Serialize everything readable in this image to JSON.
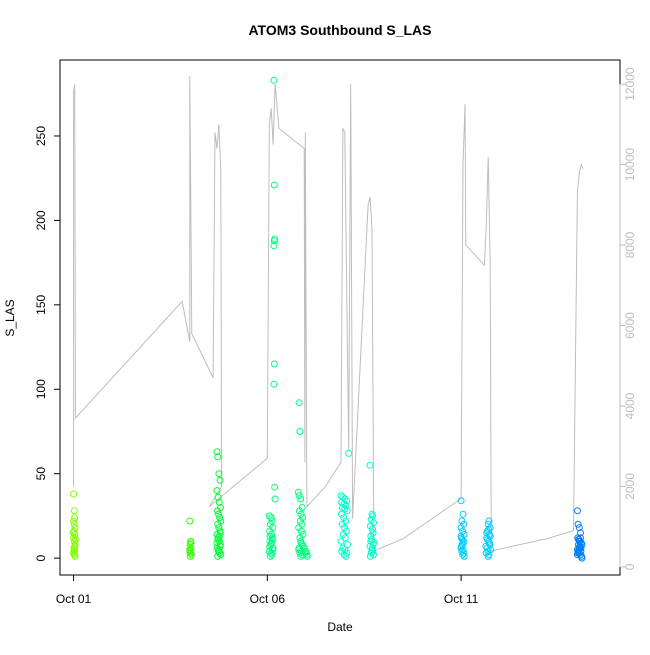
{
  "chart_data": {
    "type": "scatter",
    "title": "ATOM3 Southbound S_LAS",
    "xlabel": "Date",
    "ylabel": "S_LAS",
    "x_ticks": [
      "Oct 01",
      "Oct 06",
      "Oct 11"
    ],
    "x_tick_days": [
      1,
      6,
      11
    ],
    "xlim": [
      0.65,
      15.1
    ],
    "ylim": [
      -10,
      295
    ],
    "y_ticks": [
      0,
      50,
      100,
      150,
      200,
      250
    ],
    "y2_ticks": [
      0,
      2000,
      4000,
      6000,
      8000,
      10000,
      12000
    ],
    "y2lim": [
      -200,
      12600
    ],
    "grid": false,
    "legend": "none",
    "colors": {
      "secondary_line": "#bdbdbd",
      "point_colors": [
        "#7fff00",
        "#33ff00",
        "#00ff33",
        "#00ff7f",
        "#00ffcc",
        "#00ffff",
        "#00ccff",
        "#007fff"
      ]
    },
    "series": [
      {
        "points": [
          [
            1.0,
            38
          ],
          [
            1.02,
            28
          ],
          [
            1.03,
            24
          ],
          [
            1.0,
            22
          ],
          [
            1.02,
            20
          ],
          [
            1.04,
            18
          ],
          [
            1.01,
            16
          ],
          [
            1.03,
            14
          ],
          [
            1.0,
            12
          ],
          [
            1.02,
            10
          ],
          [
            1.04,
            8
          ],
          [
            1.01,
            6
          ],
          [
            1.03,
            4
          ],
          [
            1.0,
            3
          ],
          [
            1.02,
            2
          ],
          [
            1.04,
            1
          ],
          [
            1.01,
            5
          ],
          [
            1.03,
            7
          ],
          [
            1.05,
            11
          ],
          [
            0.99,
            15
          ],
          [
            4.0,
            22
          ],
          [
            4.02,
            10
          ],
          [
            4.01,
            8
          ],
          [
            4.03,
            6
          ],
          [
            4.0,
            4
          ],
          [
            4.02,
            3
          ],
          [
            4.04,
            2
          ],
          [
            4.01,
            1
          ],
          [
            4.03,
            9
          ],
          [
            4.0,
            5
          ],
          [
            4.7,
            63
          ],
          [
            4.72,
            60
          ],
          [
            4.75,
            50
          ],
          [
            4.78,
            46
          ],
          [
            4.7,
            40
          ],
          [
            4.73,
            36
          ],
          [
            4.76,
            33
          ],
          [
            4.79,
            30
          ],
          [
            4.71,
            28
          ],
          [
            4.74,
            26
          ],
          [
            4.77,
            24
          ],
          [
            4.8,
            22
          ],
          [
            4.72,
            20
          ],
          [
            4.75,
            18
          ],
          [
            4.78,
            16
          ],
          [
            4.7,
            14
          ],
          [
            4.73,
            12
          ],
          [
            4.76,
            10
          ],
          [
            4.79,
            8
          ],
          [
            4.71,
            6
          ],
          [
            4.74,
            4
          ],
          [
            4.77,
            3
          ],
          [
            4.8,
            2
          ],
          [
            4.72,
            1
          ],
          [
            4.75,
            5
          ],
          [
            4.78,
            7
          ],
          [
            4.7,
            9
          ],
          [
            4.73,
            11
          ],
          [
            4.76,
            13
          ],
          [
            4.79,
            15
          ],
          [
            6.05,
            25
          ],
          [
            6.1,
            24
          ],
          [
            6.12,
            22
          ],
          [
            6.08,
            20
          ],
          [
            6.14,
            18
          ],
          [
            6.06,
            16
          ],
          [
            6.11,
            14
          ],
          [
            6.13,
            12
          ],
          [
            6.07,
            10
          ],
          [
            6.09,
            8
          ],
          [
            6.15,
            6
          ],
          [
            6.05,
            4
          ],
          [
            6.1,
            3
          ],
          [
            6.12,
            2
          ],
          [
            6.08,
            1
          ],
          [
            6.14,
            5
          ],
          [
            6.06,
            7
          ],
          [
            6.11,
            9
          ],
          [
            6.13,
            11
          ],
          [
            6.07,
            13
          ],
          [
            6.17,
            283
          ],
          [
            6.18,
            221
          ],
          [
            6.19,
            189
          ],
          [
            6.18,
            188
          ],
          [
            6.17,
            185
          ],
          [
            6.18,
            115
          ],
          [
            6.17,
            103
          ],
          [
            6.19,
            42
          ],
          [
            6.2,
            35
          ],
          [
            6.82,
            92
          ],
          [
            6.84,
            75
          ],
          [
            6.8,
            39
          ],
          [
            6.82,
            37
          ],
          [
            6.86,
            35
          ],
          [
            6.9,
            30
          ],
          [
            6.83,
            28
          ],
          [
            6.87,
            26
          ],
          [
            6.91,
            24
          ],
          [
            6.85,
            22
          ],
          [
            6.89,
            20
          ],
          [
            6.81,
            18
          ],
          [
            6.88,
            16
          ],
          [
            6.92,
            14
          ],
          [
            6.84,
            12
          ],
          [
            6.86,
            10
          ],
          [
            6.9,
            8
          ],
          [
            6.82,
            6
          ],
          [
            6.88,
            4
          ],
          [
            6.84,
            3
          ],
          [
            6.9,
            2
          ],
          [
            6.86,
            1
          ],
          [
            6.81,
            5
          ],
          [
            6.92,
            7
          ],
          [
            6.87,
            9
          ],
          [
            7.0,
            4
          ],
          [
            7.02,
            2
          ],
          [
            6.98,
            3
          ],
          [
            7.03,
            1
          ],
          [
            6.96,
            6
          ]
        ]
      },
      {
        "points": [
          [
            7.9,
            37
          ],
          [
            7.95,
            36
          ],
          [
            8.0,
            35
          ],
          [
            8.05,
            34
          ],
          [
            7.92,
            33
          ],
          [
            7.98,
            32
          ],
          [
            8.03,
            31
          ],
          [
            7.94,
            30
          ],
          [
            8.0,
            29
          ],
          [
            8.06,
            28
          ],
          [
            7.91,
            26
          ],
          [
            7.97,
            24
          ],
          [
            8.02,
            22
          ],
          [
            7.93,
            20
          ],
          [
            7.99,
            18
          ],
          [
            8.04,
            16
          ],
          [
            7.96,
            14
          ],
          [
            8.01,
            12
          ],
          [
            7.9,
            10
          ],
          [
            8.07,
            8
          ],
          [
            7.95,
            6
          ],
          [
            8.0,
            5
          ],
          [
            7.92,
            4
          ],
          [
            8.05,
            3
          ],
          [
            7.98,
            2
          ],
          [
            8.03,
            1
          ],
          [
            8.1,
            62
          ],
          [
            8.65,
            55
          ],
          [
            8.7,
            26
          ],
          [
            8.72,
            25
          ],
          [
            8.68,
            23
          ],
          [
            8.74,
            21
          ],
          [
            8.66,
            19
          ],
          [
            8.71,
            17
          ],
          [
            8.73,
            15
          ],
          [
            8.67,
            13
          ],
          [
            8.69,
            11
          ],
          [
            8.75,
            9
          ],
          [
            8.65,
            7
          ],
          [
            8.7,
            5
          ],
          [
            8.72,
            4
          ],
          [
            8.68,
            3
          ],
          [
            8.74,
            2
          ],
          [
            8.66,
            1
          ],
          [
            8.71,
            6
          ],
          [
            8.73,
            8
          ],
          [
            8.67,
            10
          ]
        ]
      },
      {
        "points": [
          [
            11.0,
            34
          ],
          [
            11.05,
            26
          ],
          [
            11.02,
            22
          ],
          [
            11.07,
            20
          ],
          [
            11.0,
            18
          ],
          [
            11.04,
            16
          ],
          [
            11.08,
            14
          ],
          [
            11.01,
            12
          ],
          [
            11.06,
            10
          ],
          [
            11.03,
            8
          ],
          [
            11.0,
            6
          ],
          [
            11.05,
            5
          ],
          [
            11.02,
            4
          ],
          [
            11.07,
            3
          ],
          [
            11.04,
            2
          ],
          [
            11.08,
            1
          ],
          [
            11.01,
            7
          ],
          [
            11.06,
            9
          ],
          [
            11.03,
            11
          ],
          [
            11.0,
            13
          ],
          [
            11.72,
            22
          ],
          [
            11.7,
            20
          ],
          [
            11.75,
            18
          ],
          [
            11.68,
            16
          ],
          [
            11.73,
            14
          ],
          [
            11.66,
            12
          ],
          [
            11.71,
            10
          ],
          [
            11.74,
            8
          ],
          [
            11.67,
            6
          ],
          [
            11.69,
            4
          ],
          [
            11.65,
            3
          ],
          [
            11.72,
            2
          ],
          [
            11.7,
            1
          ],
          [
            11.76,
            5
          ],
          [
            11.64,
            7
          ],
          [
            11.73,
            9
          ],
          [
            11.68,
            11
          ],
          [
            11.75,
            13
          ],
          [
            11.66,
            15
          ],
          [
            11.71,
            17
          ],
          [
            14.0,
            28
          ],
          [
            14.02,
            20
          ],
          [
            14.05,
            18
          ],
          [
            14.08,
            15
          ],
          [
            14.01,
            12
          ],
          [
            14.04,
            11
          ],
          [
            14.07,
            10
          ],
          [
            14.1,
            9
          ],
          [
            14.03,
            8
          ],
          [
            14.06,
            7
          ],
          [
            14.09,
            6
          ],
          [
            14.0,
            5
          ],
          [
            14.02,
            4
          ],
          [
            14.05,
            3
          ],
          [
            14.08,
            2
          ],
          [
            14.11,
            1
          ],
          [
            14.12,
            0
          ],
          [
            14.01,
            3
          ],
          [
            14.04,
            5
          ],
          [
            14.07,
            7
          ],
          [
            14.1,
            9
          ],
          [
            14.03,
            11
          ],
          [
            14.06,
            6
          ],
          [
            14.09,
            4
          ],
          [
            14.0,
            2
          ],
          [
            14.12,
            8
          ],
          [
            14.05,
            10
          ],
          [
            14.08,
            12
          ]
        ]
      }
    ],
    "secondary_series": {
      "axis": "right",
      "color": "#bdbdbd",
      "points": [
        [
          1.0,
          2000
        ],
        [
          1.0,
          11800
        ],
        [
          1.03,
          12000
        ],
        [
          1.05,
          3700
        ],
        [
          3.8,
          6600
        ],
        [
          4.0,
          5600
        ],
        [
          4.0,
          12200
        ],
        [
          4.05,
          5800
        ],
        [
          4.6,
          4700
        ],
        [
          4.65,
          10800
        ],
        [
          4.7,
          10400
        ],
        [
          4.75,
          11000
        ],
        [
          4.8,
          9800
        ],
        [
          4.82,
          2000
        ],
        [
          4.5,
          1500
        ],
        [
          6.0,
          2700
        ],
        [
          6.05,
          11000
        ],
        [
          6.1,
          11400
        ],
        [
          6.15,
          10500
        ],
        [
          6.2,
          12000
        ],
        [
          6.3,
          10900
        ],
        [
          6.95,
          10400
        ],
        [
          6.97,
          2600
        ],
        [
          6.98,
          10800
        ],
        [
          7.02,
          1500
        ],
        [
          7.5,
          2000
        ],
        [
          7.9,
          2600
        ],
        [
          7.95,
          10900
        ],
        [
          8.0,
          10800
        ],
        [
          8.1,
          2900
        ],
        [
          8.15,
          12000
        ],
        [
          8.2,
          1200
        ],
        [
          8.6,
          9000
        ],
        [
          8.65,
          9200
        ],
        [
          8.7,
          8400
        ],
        [
          8.75,
          400
        ],
        [
          9.5,
          700
        ],
        [
          11.0,
          1700
        ],
        [
          11.05,
          10000
        ],
        [
          11.1,
          11500
        ],
        [
          11.12,
          8000
        ],
        [
          11.6,
          7500
        ],
        [
          11.65,
          8500
        ],
        [
          11.7,
          10200
        ],
        [
          11.75,
          7500
        ],
        [
          11.78,
          400
        ],
        [
          13.2,
          700
        ],
        [
          13.9,
          900
        ],
        [
          14.0,
          9300
        ],
        [
          14.05,
          9800
        ],
        [
          14.1,
          10000
        ],
        [
          14.15,
          9900
        ]
      ]
    }
  }
}
